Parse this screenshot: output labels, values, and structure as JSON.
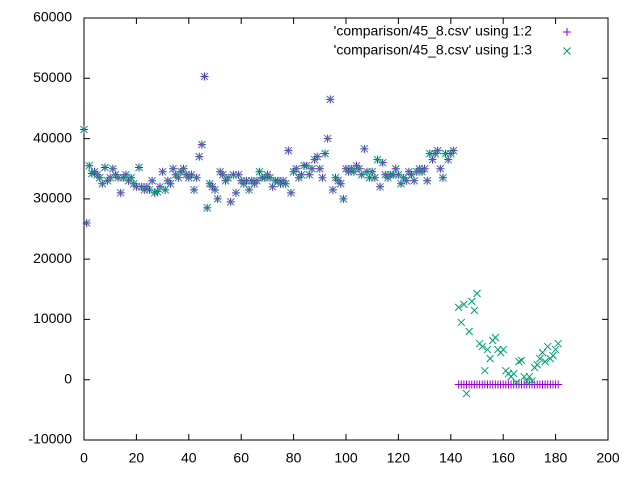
{
  "chart_data": {
    "type": "scatter",
    "x": [
      0,
      1,
      2,
      3,
      4,
      5,
      6,
      7,
      8,
      9,
      10,
      11,
      12,
      13,
      14,
      15,
      16,
      17,
      18,
      19,
      20,
      21,
      22,
      23,
      24,
      25,
      26,
      27,
      28,
      29,
      30,
      31,
      32,
      33,
      34,
      35,
      36,
      37,
      38,
      39,
      40,
      41,
      42,
      43,
      44,
      45,
      46,
      47,
      48,
      49,
      50,
      51,
      52,
      53,
      54,
      55,
      56,
      57,
      58,
      59,
      60,
      61,
      62,
      63,
      64,
      65,
      66,
      67,
      68,
      69,
      70,
      71,
      72,
      73,
      74,
      75,
      76,
      77,
      78,
      79,
      80,
      81,
      82,
      83,
      84,
      85,
      86,
      87,
      88,
      89,
      90,
      91,
      92,
      93,
      94,
      95,
      96,
      97,
      98,
      99,
      100,
      101,
      102,
      103,
      104,
      105,
      106,
      107,
      108,
      109,
      110,
      111,
      112,
      113,
      114,
      115,
      116,
      117,
      118,
      119,
      120,
      121,
      122,
      123,
      124,
      125,
      126,
      127,
      128,
      129,
      130,
      131,
      132,
      133,
      134,
      135,
      136,
      137,
      138,
      139,
      140,
      141,
      143,
      144,
      145,
      146,
      147,
      148,
      149,
      150,
      151,
      152,
      153,
      154,
      155,
      156,
      157,
      158,
      159,
      160,
      161,
      162,
      163,
      164,
      165,
      166,
      167,
      168,
      169,
      170,
      171,
      172,
      173,
      174,
      175,
      176,
      177,
      178,
      179,
      180,
      181
    ],
    "series": [
      {
        "name": "'comparison/45_8.csv' using 1:2",
        "color": "#9400d3",
        "marker": "plus",
        "values": [
          41500,
          26000,
          35500,
          34200,
          34500,
          34000,
          33500,
          32500,
          35200,
          33000,
          33500,
          35000,
          34000,
          33500,
          31000,
          33500,
          34000,
          33000,
          33500,
          32500,
          32000,
          35200,
          32000,
          31500,
          32000,
          31500,
          33000,
          31000,
          31200,
          32000,
          34500,
          31500,
          33000,
          32500,
          35000,
          34000,
          33500,
          34500,
          35000,
          34000,
          33500,
          34000,
          31500,
          33500,
          37000,
          39000,
          50300,
          28500,
          32500,
          32000,
          31500,
          30000,
          34500,
          34000,
          33000,
          33500,
          29500,
          34000,
          31000,
          34000,
          33000,
          32500,
          33000,
          31500,
          33000,
          32500,
          33000,
          34500,
          33500,
          33500,
          34000,
          33500,
          32000,
          33000,
          33000,
          32500,
          33000,
          32500,
          38000,
          31000,
          34500,
          35000,
          33500,
          34000,
          35500,
          35500,
          34000,
          35000,
          36500,
          37000,
          35000,
          33500,
          37500,
          40000,
          46500,
          31500,
          33500,
          33000,
          32500,
          30000,
          35000,
          34500,
          35000,
          34500,
          35500,
          35000,
          34000,
          38300,
          34500,
          33500,
          34500,
          33500,
          36500,
          32000,
          36000,
          34000,
          33500,
          34000,
          34000,
          35000,
          34000,
          32500,
          33500,
          33000,
          34500,
          34000,
          33000,
          34500,
          35000,
          34500,
          35000,
          33000,
          37500,
          36500,
          37500,
          38000,
          35000,
          33500,
          37500,
          36500,
          37500,
          38000,
          -800,
          -800,
          -800,
          -800,
          -800,
          -800,
          -800,
          -800,
          -800,
          -800,
          -800,
          -800,
          -800,
          -800,
          -800,
          -800,
          -800,
          -800,
          -800,
          -800,
          -800,
          -800,
          -800,
          -800,
          -800,
          -800,
          -800,
          -800,
          -800,
          -800,
          -800,
          -800,
          -800,
          -800,
          -800,
          -800,
          -800,
          -800,
          -800
        ]
      },
      {
        "name": "'comparison/45_8.csv' using 1:3",
        "color": "#009e73",
        "marker": "cross",
        "values": [
          41500,
          26000,
          35500,
          34200,
          34500,
          34000,
          33500,
          32500,
          35200,
          33000,
          33500,
          35000,
          34000,
          33500,
          31000,
          33500,
          34000,
          33000,
          33500,
          32500,
          32000,
          35200,
          32000,
          31500,
          32000,
          31500,
          33000,
          31000,
          31200,
          32000,
          34500,
          31500,
          33000,
          32500,
          35000,
          34000,
          33500,
          34500,
          35000,
          34000,
          33500,
          34000,
          31500,
          33500,
          37000,
          39000,
          50300,
          28500,
          32500,
          32000,
          31500,
          30000,
          34500,
          34000,
          33000,
          33500,
          29500,
          34000,
          31000,
          34000,
          33000,
          32500,
          33000,
          31500,
          33000,
          32500,
          33000,
          34500,
          33500,
          33500,
          34000,
          33500,
          32000,
          33000,
          33000,
          32500,
          33000,
          32500,
          38000,
          31000,
          34500,
          35000,
          33500,
          34000,
          35500,
          35500,
          34000,
          35000,
          36500,
          37000,
          35000,
          33500,
          37500,
          40000,
          46500,
          31500,
          33500,
          33000,
          32500,
          30000,
          35000,
          34500,
          35000,
          34500,
          35500,
          35000,
          34000,
          38300,
          34500,
          33500,
          34500,
          33500,
          36500,
          32000,
          36000,
          34000,
          33500,
          34000,
          34000,
          35000,
          34000,
          32500,
          33500,
          33000,
          34500,
          34000,
          33000,
          34500,
          35000,
          34500,
          35000,
          33000,
          37500,
          36500,
          37500,
          38000,
          35000,
          33500,
          37500,
          36500,
          37500,
          38000,
          12000,
          9500,
          12500,
          -2300,
          8000,
          13000,
          11500,
          14300,
          6000,
          5500,
          1500,
          5000,
          3500,
          6500,
          7000,
          5000,
          4500,
          5000,
          1500,
          1000,
          500,
          1000,
          -500,
          3000,
          3200,
          500,
          -300,
          500,
          -200,
          2000,
          2500,
          3500,
          4500,
          3000,
          5500,
          3500,
          4000,
          5000,
          6000
        ]
      }
    ],
    "xlim": [
      0,
      200
    ],
    "xticks": [
      0,
      20,
      40,
      60,
      80,
      100,
      120,
      140,
      160,
      180,
      200
    ],
    "ylim": [
      -10000,
      60000
    ],
    "yticks": [
      -10000,
      0,
      10000,
      20000,
      30000,
      40000,
      50000,
      60000
    ],
    "legend": "top-right"
  }
}
